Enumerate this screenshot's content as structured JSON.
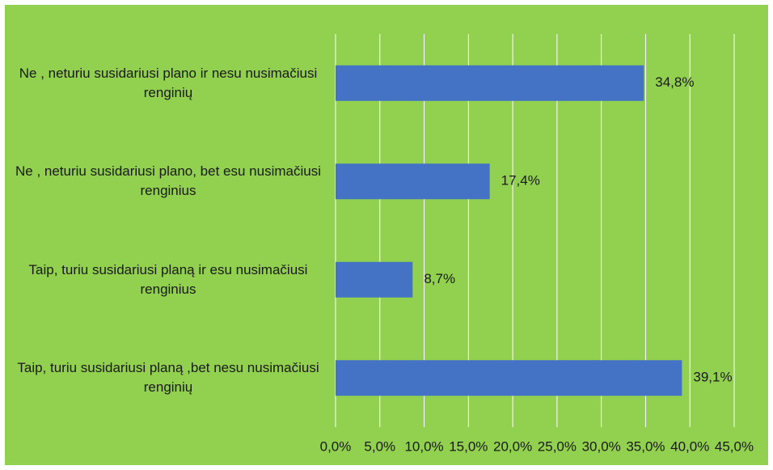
{
  "chart_data": {
    "type": "bar",
    "orientation": "horizontal",
    "categories": [
      "Ne , neturiu susidariusi plano ir nesu nusimačiusi renginių",
      "Ne , neturiu susidariusi plano, bet esu nusimačiusi renginius",
      "Taip, turiu susidariusi planą ir esu nusimačiusi renginius",
      "Taip, turiu susidariusi planą ,bet nesu nusimačiusi renginių"
    ],
    "values": [
      34.8,
      17.4,
      8.7,
      39.1
    ],
    "value_labels": [
      "34,8%",
      "17,4%",
      "8,7%",
      "39,1%"
    ],
    "color": "#4472c4",
    "xlim": [
      0,
      45
    ],
    "xticks": [
      {
        "value": 0,
        "label": "0,0%"
      },
      {
        "value": 5,
        "label": "5,0%"
      },
      {
        "value": 10,
        "label": "10,0%"
      },
      {
        "value": 15,
        "label": "15,0%"
      },
      {
        "value": 20,
        "label": "20,0%"
      },
      {
        "value": 25,
        "label": "25,0%"
      },
      {
        "value": 30,
        "label": "30,0%"
      },
      {
        "value": 35,
        "label": "35,0%"
      },
      {
        "value": 40,
        "label": "40,0%"
      },
      {
        "value": 45,
        "label": "45,0%"
      }
    ],
    "grid": true
  }
}
